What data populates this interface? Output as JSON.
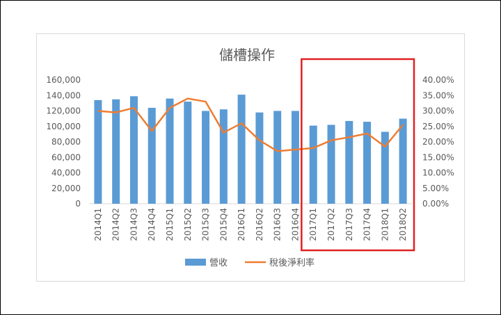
{
  "chart_data": {
    "type": "bar",
    "title": "儲槽操作",
    "categories": [
      "2014Q1",
      "2014Q2",
      "2014Q3",
      "2014Q4",
      "2015Q1",
      "2015Q2",
      "2015Q3",
      "2015Q4",
      "2016Q1",
      "2016Q2",
      "2016Q3",
      "2016Q4",
      "2017Q1",
      "2017Q2",
      "2017Q3",
      "2017Q4",
      "2018Q1",
      "2018Q2"
    ],
    "series": [
      {
        "name": "營收",
        "type": "bar",
        "axis": "left",
        "color": "#5b9bd5",
        "values": [
          134000,
          135000,
          139000,
          124000,
          136000,
          132000,
          120000,
          122000,
          141000,
          118000,
          120000,
          120000,
          101000,
          102000,
          107000,
          106000,
          93000,
          110000
        ]
      },
      {
        "name": "稅後淨利率",
        "type": "line",
        "axis": "right",
        "color": "#ed7d31",
        "values": [
          0.3,
          0.295,
          0.31,
          0.235,
          0.31,
          0.34,
          0.33,
          0.23,
          0.26,
          0.205,
          0.17,
          0.175,
          0.18,
          0.205,
          0.215,
          0.227,
          0.185,
          0.255
        ]
      }
    ],
    "y_left": {
      "min": 0,
      "max": 160000,
      "step": 20000,
      "tick_labels": [
        "0",
        "20,000",
        "40,000",
        "60,000",
        "80,000",
        "100,000",
        "120,000",
        "140,000",
        "160,000"
      ]
    },
    "y_right": {
      "min": 0,
      "max": 0.4,
      "step": 0.05,
      "tick_labels": [
        "0.00%",
        "5.00%",
        "10.00%",
        "15.00%",
        "20.00%",
        "25.00%",
        "30.00%",
        "35.00%",
        "40.00%"
      ]
    },
    "grid": false,
    "legend_position": "bottom",
    "highlight": {
      "from": "2017Q1",
      "to": "2018Q2",
      "color": "#e02020"
    }
  }
}
